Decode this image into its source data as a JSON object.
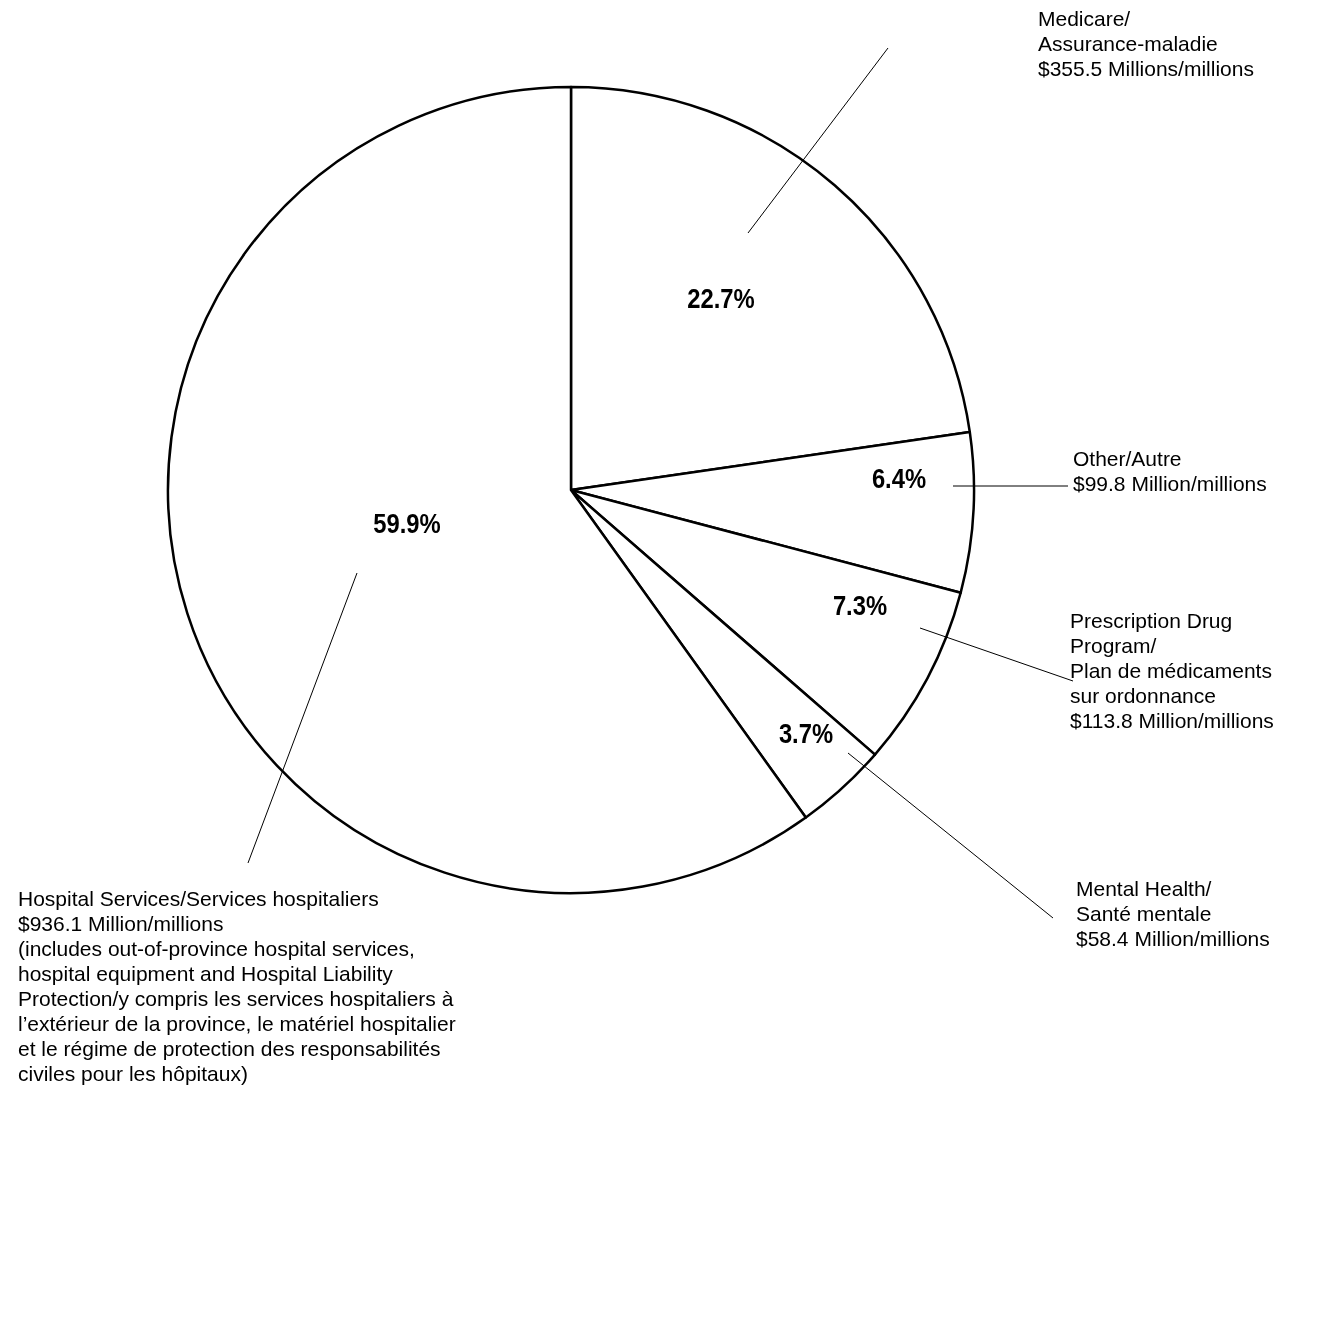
{
  "chart_data": {
    "type": "pie",
    "categories": [
      "Medicare/\nAssurance-maladie\n$355.5 Millions/millions",
      "Other/Autre\n$99.8 Million/millions",
      "Prescription Drug\nProgram/\nPlan de médicaments\nsur ordonnance\n$113.8 Million/millions",
      "Mental Health/\nSanté mentale\n$58.4 Million/millions",
      "Hospital Services/Services hospitaliers\n$936.1 Million/millions\n(includes out-of-province hospital services,\nhospital equipment and Hospital Liability\nProtection/y compris les services hospitaliers à\nl’extérieur de la province, le matériel hospitalier\net le régime de protection des responsabilités\nciviles pour les hôpitaux)"
    ],
    "values": [
      22.7,
      6.4,
      7.3,
      3.7,
      59.9
    ],
    "value_labels": [
      "22.7%",
      "6.4%",
      "7.3%",
      "3.7%",
      "59.9%"
    ],
    "colors": [
      "#ffffff",
      "#ffffff",
      "#ffffff",
      "#ffffff",
      "#ffffff"
    ]
  }
}
